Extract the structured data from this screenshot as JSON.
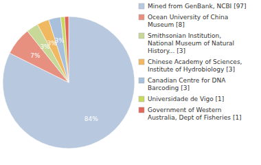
{
  "chart_data": {
    "type": "pie",
    "categories": [
      "Mined from GenBank, NCBI [97]",
      "Ocean University of China\nMuseum [8]",
      "Smithsonian Institution,\nNational Museum of Natural\nHistory... [3]",
      "Chinese Academy of Sciences,\nInstitute of Hydrobiology [3]",
      "Canadian Centre for DNA\nBarcoding [3]",
      "Universidade de Vigo [1]",
      "Government of Western\nAustralia, Dept of Fisheries [1]"
    ],
    "values": [
      84,
      7,
      3,
      3,
      3,
      1,
      1
    ],
    "value_labels": [
      "84%",
      "7%",
      "3%",
      "3%",
      "3%",
      null,
      null
    ],
    "colors": [
      "#b8c8de",
      "#e89080",
      "#c8d898",
      "#f0b860",
      "#a8c0dc",
      "#c8d860",
      "#e06858"
    ],
    "data_labels": true,
    "legend": "right"
  }
}
